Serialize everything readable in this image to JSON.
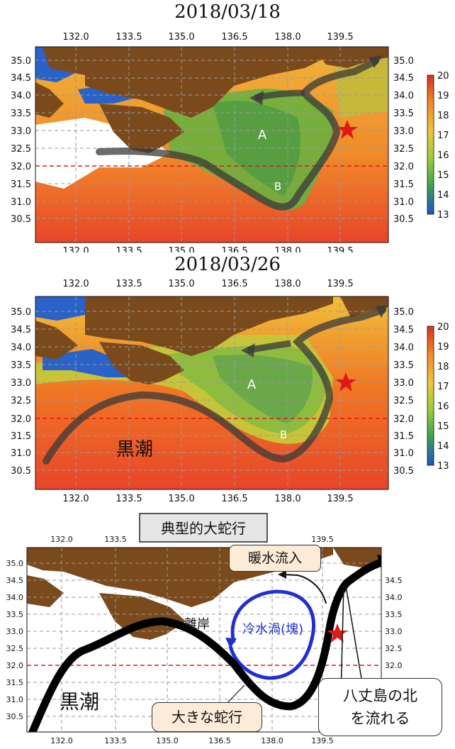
{
  "panel1": {
    "date": "2018/03/18",
    "x_ticks": [
      "132.0",
      "133.5",
      "135.0",
      "136.5",
      "138.0",
      "139.5"
    ],
    "y_ticks": [
      "35.0",
      "34.5",
      "34.0",
      "33.5",
      "33.0",
      "32.5",
      "32.0",
      "31.5",
      "31.0",
      "30.5"
    ],
    "colorbar_ticks": [
      "20",
      "19",
      "18",
      "17",
      "16",
      "15",
      "14",
      "13"
    ],
    "label_a": "A",
    "label_b": "B"
  },
  "panel2": {
    "date": "2018/03/26",
    "x_ticks": [
      "132.0",
      "133.5",
      "135.0",
      "136.5",
      "138.0",
      "139.5"
    ],
    "y_ticks": [
      "35.0",
      "34.5",
      "34.0",
      "33.5",
      "33.0",
      "32.5",
      "32.0",
      "31.5",
      "31.0",
      "30.5"
    ],
    "colorbar_ticks": [
      "20",
      "19",
      "18",
      "17",
      "16",
      "15",
      "14",
      "13"
    ],
    "label_a": "A",
    "label_b": "B",
    "kuroshio": "黒潮"
  },
  "panel3": {
    "header": "典型的大蛇行",
    "x_ticks": [
      "132.0",
      "133.5",
      "135.0",
      "136.5",
      "138.0",
      "139.5"
    ],
    "y_ticks": [
      "35.0",
      "34.5",
      "34.0",
      "33.5",
      "33.0",
      "32.5",
      "32.0",
      "31.5",
      "31.0",
      "30.5"
    ],
    "warm_inflow": "暖水流入",
    "offshore": "離岸",
    "cold_eddy": "冷水渦(塊)",
    "kuroshio": "黒潮",
    "big_meander": "大きな蛇行",
    "hachijo_line1": "八丈島の北",
    "hachijo_line2": "を流れる"
  },
  "colors": {
    "land": "#7a4a1c",
    "cold": "#2a62c8",
    "green": "#5fa83a",
    "yellow": "#e6c43a",
    "orange": "#f0801e",
    "warm": "#e8452a",
    "star": "#e01818",
    "eddy": "#2030d0"
  }
}
